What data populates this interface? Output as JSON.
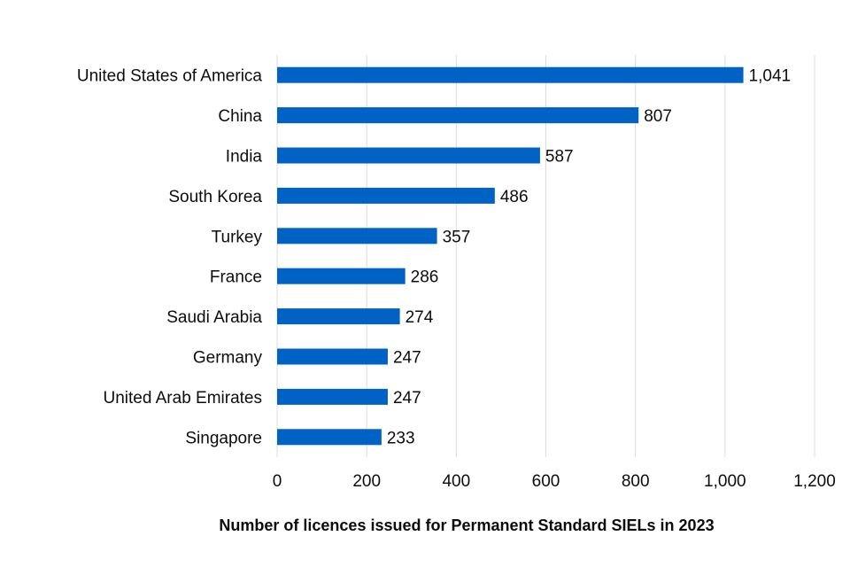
{
  "chart_data": {
    "type": "bar",
    "orientation": "horizontal",
    "categories": [
      "United States of America",
      "China",
      "India",
      "South Korea",
      "Turkey",
      "France",
      "Saudi Arabia",
      "Germany",
      "United Arab Emirates",
      "Singapore"
    ],
    "values": [
      1041,
      807,
      587,
      486,
      357,
      286,
      274,
      247,
      247,
      233
    ],
    "value_labels": [
      "1,041",
      "807",
      "587",
      "486",
      "357",
      "286",
      "274",
      "247",
      "247",
      "233"
    ],
    "title": "",
    "xlabel": "Number of licences issued for Permanent Standard SIELs in 2023",
    "ylabel": "",
    "xlim": [
      0,
      1200
    ],
    "xticks": [
      0,
      200,
      400,
      600,
      800,
      1000,
      1200
    ],
    "xtick_labels": [
      "0",
      "200",
      "400",
      "600",
      "800",
      "1,000",
      "1,200"
    ],
    "grid": "vertical",
    "legend": "none",
    "colors": {
      "bar": "#0062c4",
      "grid": "#dcdcdc",
      "text": "#0b0c0c"
    }
  }
}
